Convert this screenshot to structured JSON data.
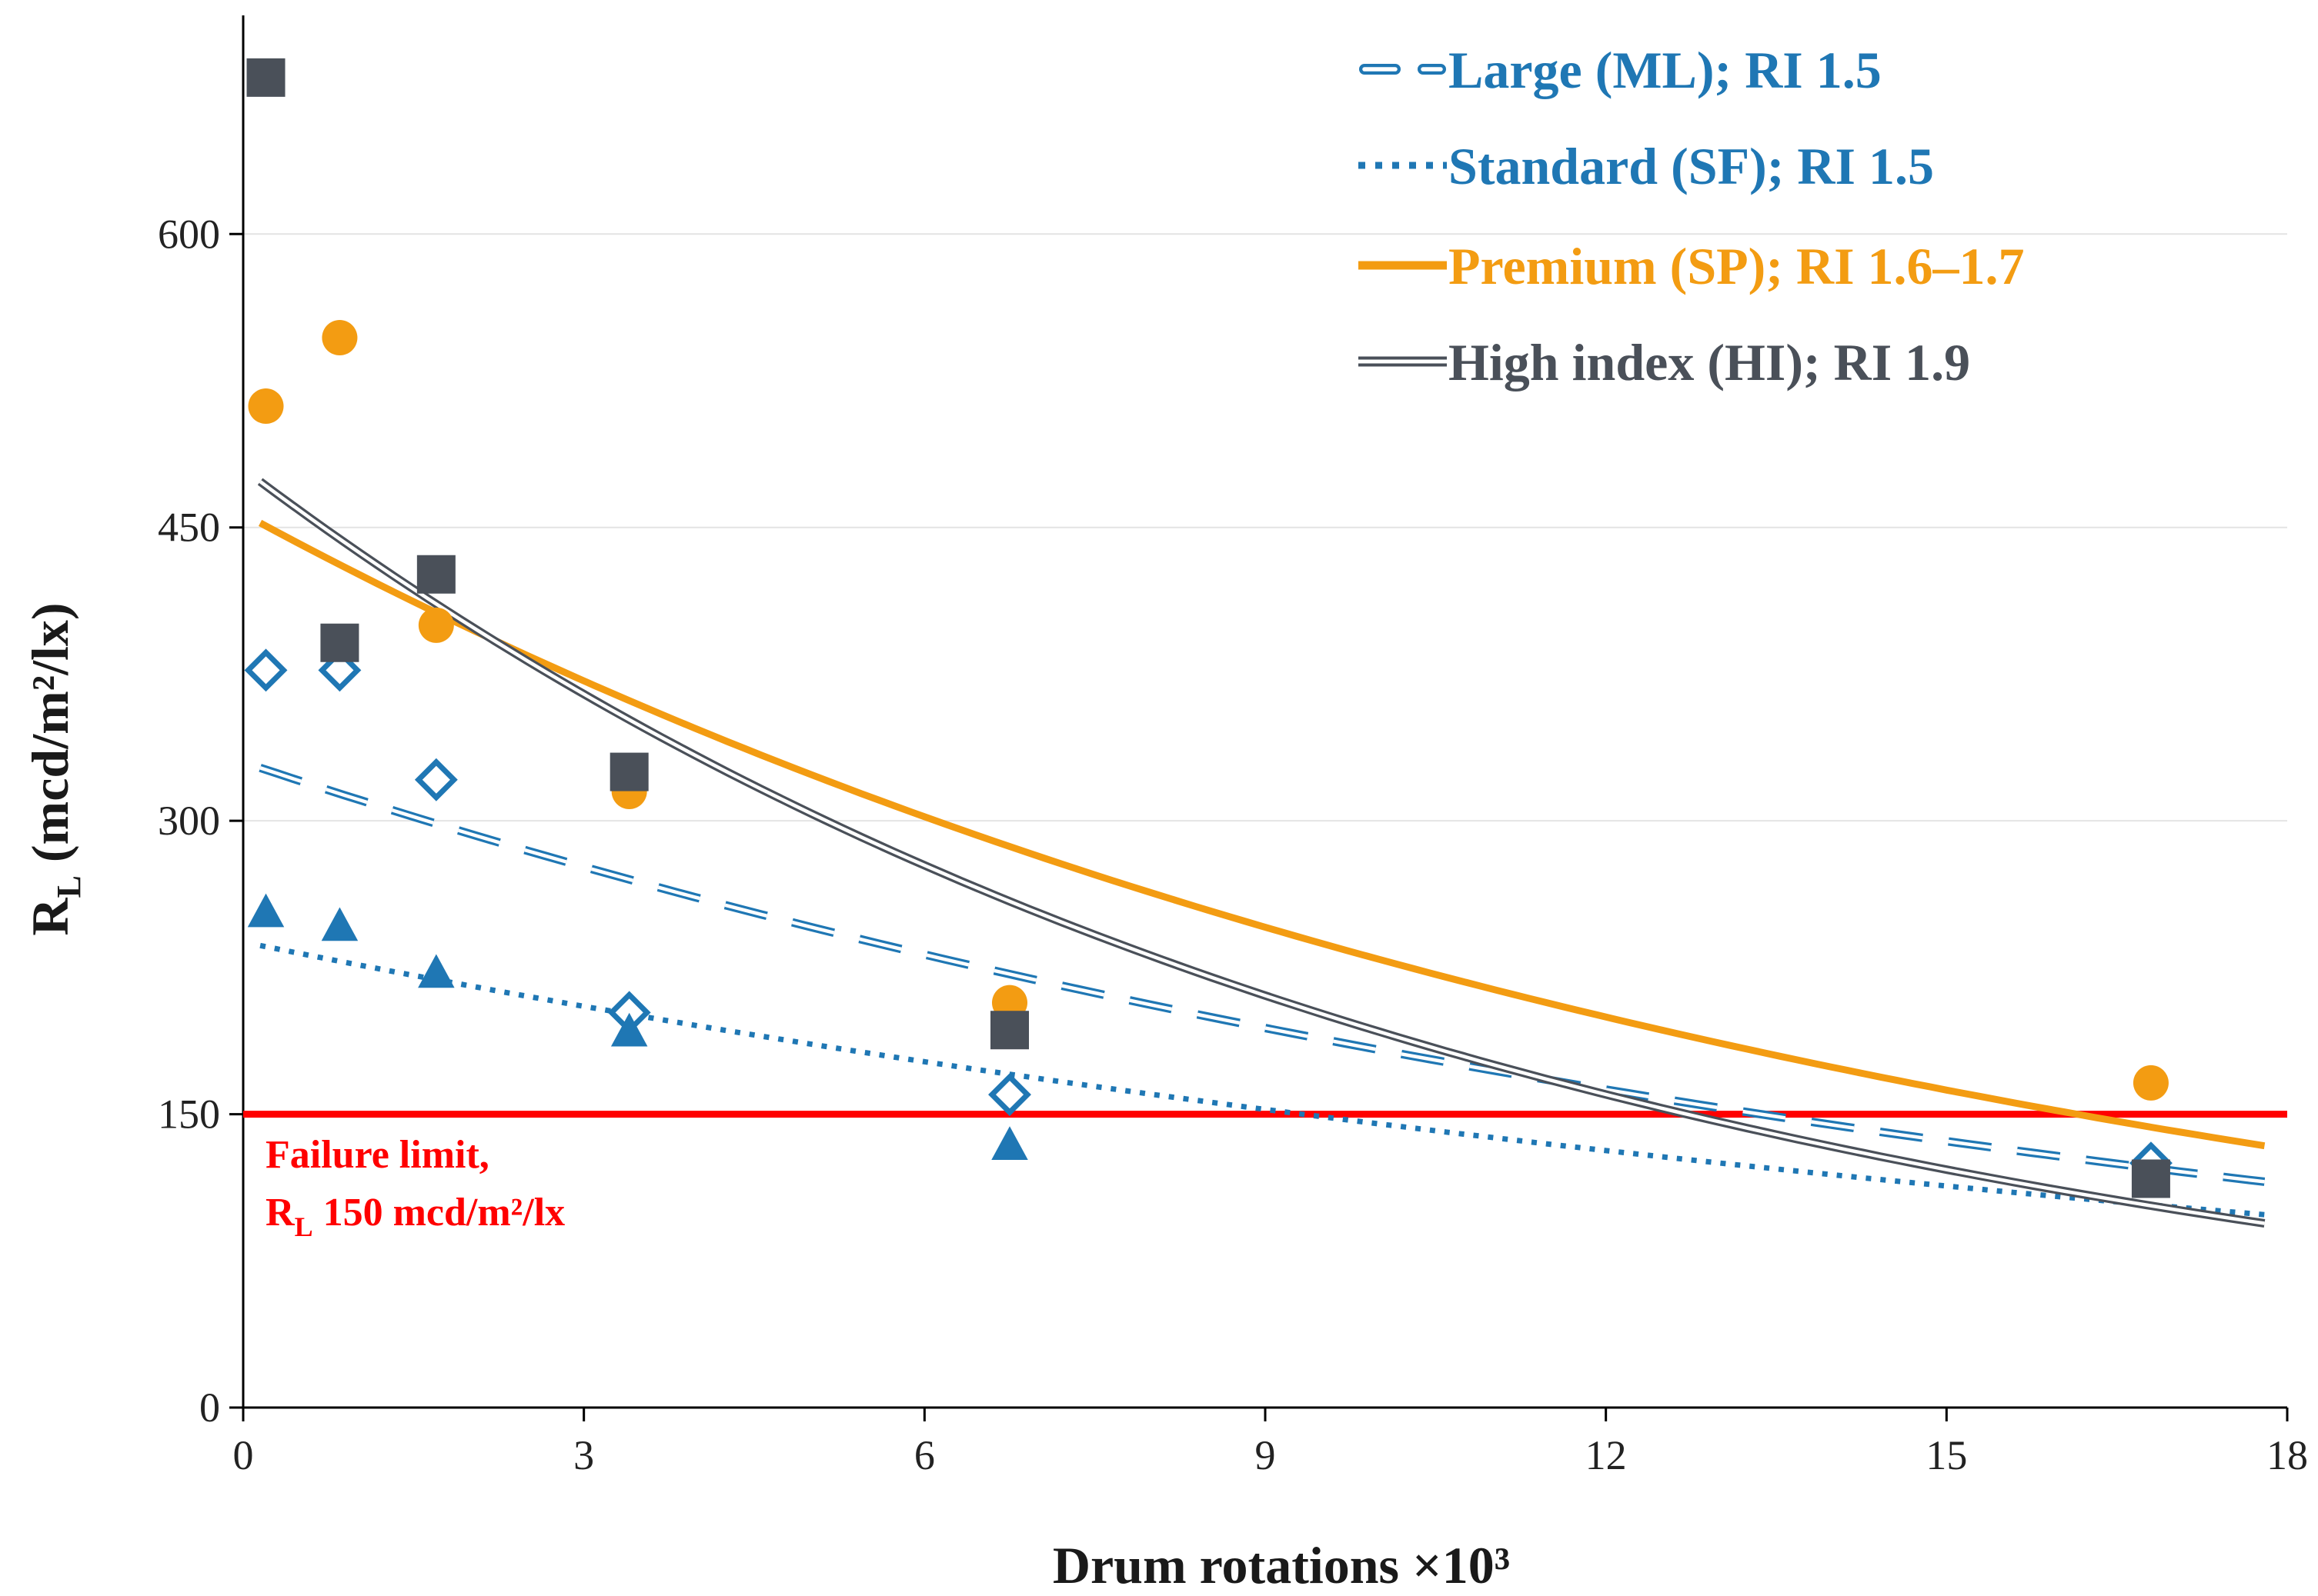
{
  "chart_data": {
    "type": "scatter",
    "title": "",
    "xlabel": "Drum rotations ×10³",
    "ylabel_main": "R",
    "ylabel_sub": "L",
    "ylabel_rest": " (mcd/m²/lx)",
    "xlim": [
      0,
      18
    ],
    "ylim": [
      0,
      700
    ],
    "xticks": [
      0,
      3,
      6,
      9,
      12,
      15,
      18
    ],
    "yticks": [
      0,
      150,
      300,
      450,
      600
    ],
    "grid": "horizontal",
    "legend_position": "top-right",
    "series": [
      {
        "name": "Large (ML); RI 1.5",
        "color": "#1f77b4",
        "marker": "diamond-open",
        "line_style": "dashed-double",
        "points": [
          [
            0.2,
            377
          ],
          [
            0.85,
            377
          ],
          [
            1.7,
            321
          ],
          [
            3.4,
            202
          ],
          [
            6.75,
            160
          ],
          [
            16.8,
            125
          ]
        ],
        "trend": {
          "type": "exponential",
          "a": 330,
          "k": -0.059,
          "x_range": [
            0.15,
            17.8
          ]
        }
      },
      {
        "name": "Standard (SF); RI 1.5",
        "color": "#1f77b4",
        "marker": "triangle",
        "line_style": "dotted",
        "points": [
          [
            0.2,
            253
          ],
          [
            0.85,
            246
          ],
          [
            1.7,
            222
          ],
          [
            3.4,
            192
          ],
          [
            6.75,
            134
          ],
          [
            16.8,
            117
          ]
        ],
        "trend": {
          "type": "exponential",
          "a": 238,
          "k": -0.0495,
          "x_range": [
            0.15,
            17.8
          ]
        }
      },
      {
        "name": "Premium (SP); RI 1.6–1.7",
        "color": "#f39c12",
        "marker": "circle",
        "line_style": "solid",
        "points": [
          [
            0.2,
            512
          ],
          [
            0.85,
            547
          ],
          [
            1.7,
            400
          ],
          [
            3.4,
            315
          ],
          [
            6.75,
            207
          ],
          [
            16.8,
            166
          ]
        ],
        "trend": {
          "type": "exponential",
          "a": 457,
          "k": -0.069,
          "x_range": [
            0.15,
            17.8
          ]
        }
      },
      {
        "name": "High index (HI); RI 1.9",
        "color": "#4a5059",
        "marker": "square",
        "line_style": "double",
        "points": [
          [
            0.2,
            680
          ],
          [
            0.85,
            391
          ],
          [
            1.7,
            426
          ],
          [
            3.4,
            325
          ],
          [
            6.75,
            193
          ],
          [
            16.8,
            117
          ]
        ],
        "trend": {
          "type": "exponential",
          "a": 480,
          "k": -0.0915,
          "x_range": [
            0.15,
            17.8
          ]
        }
      }
    ],
    "reference_line": {
      "value": 150,
      "color": "#ff0000",
      "label_line1": "Failure limit,",
      "label_main": "R",
      "label_sub": "L",
      "label_rest": " 150 mcd/m²/lx"
    }
  }
}
